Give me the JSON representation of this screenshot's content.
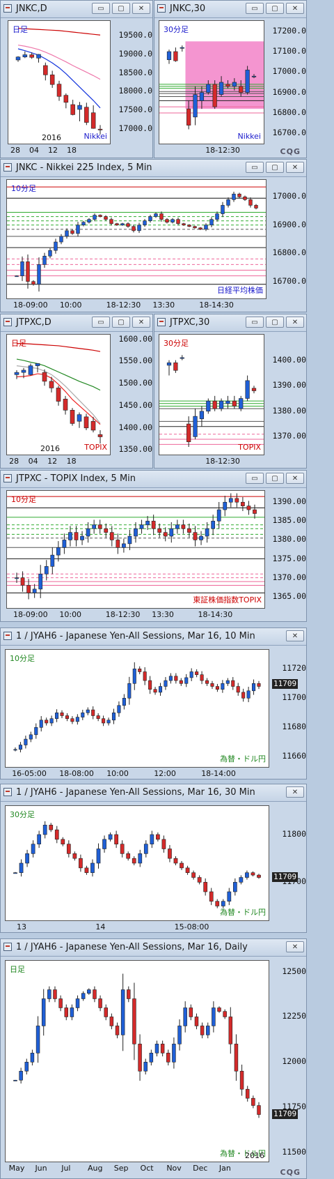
{
  "panels": [
    {
      "id": "p1",
      "title": "JNKC,D",
      "label": "日足",
      "label_color": "#1a1acc",
      "corner_label": "Nikkei",
      "corner_color": "#1a1acc",
      "y_ticks": [
        "19500.0",
        "19000.0",
        "18500.0",
        "18000.0",
        "17500.0",
        "17000.0"
      ],
      "x_ticks": [
        "28",
        "04",
        "12",
        "18"
      ],
      "x_sub": "2016",
      "ylim": [
        16600,
        19900
      ],
      "hlines": [],
      "candles": [
        [
          18850,
          18950,
          18800,
          18930
        ],
        [
          18930,
          19080,
          18900,
          18990
        ],
        [
          18990,
          19050,
          18880,
          18920
        ],
        [
          18900,
          19010,
          18780,
          19000
        ],
        [
          18700,
          18780,
          18300,
          18450
        ],
        [
          18450,
          18560,
          18100,
          18190
        ],
        [
          18200,
          18290,
          17750,
          17870
        ],
        [
          17900,
          17950,
          17550,
          17710
        ],
        [
          17650,
          17780,
          17360,
          17380
        ],
        [
          17520,
          17720,
          17200,
          17630
        ],
        [
          17580,
          17700,
          17100,
          17170
        ],
        [
          17430,
          17630,
          17000,
          17010
        ],
        [
          16990,
          17100,
          16850,
          16980
        ]
      ],
      "mas": [
        {
          "color": "#cc0000",
          "vals": [
            19700,
            19690,
            19680,
            19670,
            19660,
            19650,
            19640,
            19620,
            19600,
            19580,
            19560,
            19540,
            19520
          ]
        },
        {
          "color": "#ee77aa",
          "vals": [
            19250,
            19220,
            19180,
            19130,
            19060,
            18980,
            18890,
            18800,
            18700,
            18610,
            18520,
            18430,
            18330
          ]
        },
        {
          "color": "#1133dd",
          "vals": [
            19150,
            19100,
            19040,
            18980,
            18880,
            18770,
            18640,
            18480,
            18300,
            18120,
            17940,
            17760,
            17560
          ]
        }
      ],
      "cqg": false
    },
    {
      "id": "p2",
      "title": "JNKC,30",
      "label": "30分足",
      "label_color": "#1a1acc",
      "corner_label": "Nikkei",
      "corner_color": "#1a1acc",
      "y_ticks": [
        "17200.0",
        "17100.0",
        "17000.0",
        "16900.0",
        "16800.0",
        "16700.0"
      ],
      "x_ticks": [
        "18-12:30"
      ],
      "x_sub": "",
      "ylim": [
        16650,
        17250
      ],
      "hlines": [
        {
          "y": 16940,
          "color": "#2faa2f"
        },
        {
          "y": 16930,
          "color": "#2faa2f"
        },
        {
          "y": 16920,
          "color": "#2faa2f"
        },
        {
          "y": 16905,
          "color": "#555"
        },
        {
          "y": 16895,
          "color": "#555"
        },
        {
          "y": 16880,
          "color": "#555"
        },
        {
          "y": 16860,
          "color": "#222"
        },
        {
          "y": 16830,
          "color": "#ee6699"
        },
        {
          "y": 16800,
          "color": "#ee6699"
        }
      ],
      "shade": [
        17150,
        16820
      ],
      "candles": [
        [
          17060,
          17110,
          17040,
          17100
        ],
        [
          17100,
          17120,
          17050,
          17055
        ],
        [
          17120,
          17130,
          17100,
          17120
        ],
        [
          16820,
          16860,
          16720,
          16740
        ],
        [
          16780,
          16930,
          16740,
          16890
        ],
        [
          16860,
          16930,
          16820,
          16900
        ],
        [
          16900,
          16960,
          16890,
          16940
        ],
        [
          16940,
          16960,
          16820,
          16830
        ],
        [
          16890,
          16980,
          16880,
          16950
        ],
        [
          16940,
          16960,
          16920,
          16930
        ],
        [
          16930,
          16970,
          16910,
          16950
        ],
        [
          16930,
          16960,
          16880,
          16900
        ],
        [
          16900,
          17030,
          16890,
          17010
        ],
        [
          16980,
          16990,
          16970,
          16980
        ]
      ],
      "mas": [],
      "cqg": true
    },
    {
      "id": "p3",
      "title": "JNKC - Nikkei 225 Index, 5 Min",
      "label": "10分足",
      "label_color": "#1a1acc",
      "corner_label": "日経平均株価",
      "corner_color": "#1a1acc",
      "y_ticks": [
        "17000.0",
        "16900.0",
        "16800.0",
        "16700.0"
      ],
      "x_ticks": [
        "18-09:00",
        "10:00",
        "18-12:30",
        "13:30",
        "18-14:30"
      ],
      "x_sub": "",
      "ylim": [
        16640,
        17060
      ],
      "hlines": [
        {
          "y": 17035,
          "color": "#cc0000"
        },
        {
          "y": 16995,
          "color": "#111"
        },
        {
          "y": 16945,
          "color": "#2faa2f"
        },
        {
          "y": 16930,
          "color": "#2faa2f",
          "dash": true
        },
        {
          "y": 16915,
          "color": "#2faa2f",
          "dash": true
        },
        {
          "y": 16900,
          "color": "#2faa2f",
          "dash": true
        },
        {
          "y": 16885,
          "color": "#555",
          "dash": true
        },
        {
          "y": 16860,
          "color": "#555"
        },
        {
          "y": 16820,
          "color": "#222"
        },
        {
          "y": 16780,
          "color": "#ee6699",
          "dash": true
        },
        {
          "y": 16760,
          "color": "#ee6699",
          "dash": true
        },
        {
          "y": 16740,
          "color": "#ee6699"
        },
        {
          "y": 16720,
          "color": "#ee6699"
        },
        {
          "y": 16690,
          "color": "#111"
        }
      ],
      "candles": "walk:16720,16770,16700,16690,16760,16790,16810,16840,16860,16880,16870,16900,16910,16920,16935,16930,16920,16905,16900,16905,16895,16880,16900,16915,16930,16940,16920,16910,16920,16905,16900,16895,16890,16885,16900,16920,16940,16970,16990,17010,17000,16990,16970,16960",
      "mas": [],
      "cqg": false
    },
    {
      "id": "p4",
      "title": "JTPXC,D",
      "label": "日足",
      "label_color": "#cc0000",
      "corner_label": "TOPIX",
      "corner_color": "#cc0000",
      "y_ticks": [
        "1600.00",
        "1550.00",
        "1500.00",
        "1450.00",
        "1400.00",
        "1350.00"
      ],
      "x_ticks": [
        "28",
        "04",
        "12",
        "18"
      ],
      "x_sub": "2016",
      "ylim": [
        1340,
        1610
      ],
      "hlines": [],
      "candles": [
        [
          1520,
          1530,
          1510,
          1525
        ],
        [
          1525,
          1535,
          1512,
          1530
        ],
        [
          1520,
          1545,
          1518,
          1540
        ],
        [
          1540,
          1545,
          1525,
          1545
        ],
        [
          1525,
          1532,
          1495,
          1505
        ],
        [
          1505,
          1515,
          1480,
          1490
        ],
        [
          1490,
          1495,
          1450,
          1460
        ],
        [
          1465,
          1472,
          1430,
          1440
        ],
        [
          1440,
          1445,
          1405,
          1410
        ],
        [
          1415,
          1435,
          1400,
          1430
        ],
        [
          1425,
          1432,
          1395,
          1400
        ],
        [
          1415,
          1425,
          1390,
          1395
        ],
        [
          1385,
          1395,
          1365,
          1380
        ]
      ],
      "mas": [
        {
          "color": "#cc0000",
          "vals": [
            1590,
            1590,
            1589,
            1588,
            1587,
            1586,
            1585,
            1583,
            1581,
            1579,
            1577,
            1575,
            1572
          ]
        },
        {
          "color": "#228822",
          "vals": [
            1555,
            1552,
            1548,
            1545,
            1540,
            1533,
            1526,
            1519,
            1512,
            1505,
            1499,
            1493,
            1485
          ]
        },
        {
          "color": "#aaaaaa",
          "vals": [
            1540,
            1538,
            1536,
            1534,
            1528,
            1520,
            1508,
            1494,
            1478,
            1462,
            1446,
            1430,
            1410
          ]
        },
        {
          "color": "#ee2222",
          "vals": [
            1515,
            1516,
            1518,
            1522,
            1520,
            1512,
            1498,
            1482,
            1464,
            1450,
            1436,
            1422,
            1408
          ]
        }
      ],
      "cqg": false
    },
    {
      "id": "p5",
      "title": "JTPXC,30",
      "label": "30分足",
      "label_color": "#cc0000",
      "corner_label": "TOPIX",
      "corner_color": "#cc0000",
      "y_ticks": [
        "1400.00",
        "1390.00",
        "1380.00",
        "1370.00"
      ],
      "x_ticks": [
        "18-12:30"
      ],
      "x_sub": "",
      "ylim": [
        1363,
        1410
      ],
      "hlines": [
        {
          "y": 1384,
          "color": "#2faa2f"
        },
        {
          "y": 1383,
          "color": "#2faa2f"
        },
        {
          "y": 1382,
          "color": "#2faa2f"
        },
        {
          "y": 1381,
          "color": "#555"
        },
        {
          "y": 1376,
          "color": "#555"
        },
        {
          "y": 1374,
          "color": "#222"
        },
        {
          "y": 1371,
          "color": "#ee6699",
          "dash": true
        },
        {
          "y": 1369,
          "color": "#ee6699"
        },
        {
          "y": 1367,
          "color": "#ee6699"
        }
      ],
      "candles": [
        [
          1398,
          1400,
          1394,
          1399
        ],
        [
          1399,
          1400,
          1395,
          1396
        ],
        [
          1401,
          1402,
          1400,
          1401
        ],
        [
          1375,
          1378,
          1366,
          1368
        ],
        [
          1370,
          1381,
          1369,
          1378
        ],
        [
          1377,
          1382,
          1374,
          1380
        ],
        [
          1380,
          1385,
          1379,
          1384
        ],
        [
          1384,
          1386,
          1380,
          1381
        ],
        [
          1381,
          1385,
          1380,
          1384
        ],
        [
          1383,
          1386,
          1381,
          1384
        ],
        [
          1384,
          1386,
          1381,
          1382
        ],
        [
          1381,
          1386,
          1380,
          1385
        ],
        [
          1385,
          1394,
          1384,
          1392
        ],
        [
          1389,
          1390,
          1387,
          1388
        ]
      ],
      "mas": [],
      "cqg": false
    },
    {
      "id": "p6",
      "title": "JTPXC - TOPIX Index, 5 Min",
      "label": "10分足",
      "label_color": "#cc0000",
      "corner_label": "東証株価指数TOPIX",
      "corner_color": "#cc0000",
      "y_ticks": [
        "1390.00",
        "1385.00",
        "1380.00",
        "1375.00",
        "1370.00",
        "1365.00"
      ],
      "x_ticks": [
        "18-09:00",
        "10:00",
        "18-12:30",
        "13:30",
        "18-14:30"
      ],
      "x_sub": "",
      "ylim": [
        1362,
        1393
      ],
      "hlines": [
        {
          "y": 1391.5,
          "color": "#cc0000"
        },
        {
          "y": 1388.5,
          "color": "#111"
        },
        {
          "y": 1386,
          "color": "#2faa2f"
        },
        {
          "y": 1384,
          "color": "#2faa2f",
          "dash": true
        },
        {
          "y": 1383,
          "color": "#2faa2f",
          "dash": true
        },
        {
          "y": 1381.5,
          "color": "#2faa2f",
          "dash": true
        },
        {
          "y": 1380.5,
          "color": "#555",
          "dash": true
        },
        {
          "y": 1378,
          "color": "#555"
        },
        {
          "y": 1375,
          "color": "#222"
        },
        {
          "y": 1371,
          "color": "#ee6699",
          "dash": true
        },
        {
          "y": 1370,
          "color": "#ee6699",
          "dash": true
        },
        {
          "y": 1369,
          "color": "#ee6699"
        },
        {
          "y": 1368,
          "color": "#ee6699"
        },
        {
          "y": 1366,
          "color": "#111"
        }
      ],
      "candles": "walk:1370,1368,1366,1367,1371,1373,1376,1378,1380,1382,1380,1381,1383,1384,1383,1382,1380,1378,1379,1381,1383,1384,1385,1383,1382,1381,1383,1384,1383,1382,1380,1381,1383,1385,1388,1390,1391,1390,1389,1388,1387",
      "mas": [],
      "cqg": false
    },
    {
      "id": "p7",
      "title": "1 / JYAH6 - Japanese Yen-All Sessions, Mar 16, 10 Min",
      "label": "10分足",
      "label_color": "#228822",
      "corner_label": "為替・ドル円",
      "corner_color": "#228822",
      "y_ticks": [
        "11720",
        "11700",
        "11680",
        "11660"
      ],
      "x_ticks": [
        "16-05:00",
        "18-08:00",
        "10:00",
        "12:00",
        "18-14:00"
      ],
      "x_sub": "",
      "last_price": "11709",
      "ylim": [
        11653,
        11733
      ],
      "hlines": [],
      "candles": "walk:11665,11668,11672,11675,11680,11685,11683,11686,11690,11688,11686,11684,11687,11690,11692,11688,11686,11683,11685,11690,11695,11700,11710,11720,11718,11712,11706,11704,11708,11712,11715,11712,11710,11714,11718,11716,11712,11710,11708,11706,11710,11712,11708,11704,11700,11705,11710,11708",
      "mas": [],
      "cqg": false
    },
    {
      "id": "p8",
      "title": "1 / JYAH6 - Japanese Yen-All Sessions, Mar 16, 30 Min",
      "label": "30分足",
      "label_color": "#228822",
      "corner_label": "為替・ドル円",
      "corner_color": "#228822",
      "y_ticks": [
        "11800",
        "11700"
      ],
      "x_ticks": [
        "13",
        "14",
        "15-08:00"
      ],
      "x_sub": "",
      "last_price": "11709",
      "ylim": [
        11620,
        11860
      ],
      "hlines": [],
      "candles": "walk:11720,11740,11760,11780,11800,11820,11810,11790,11780,11760,11750,11730,11720,11740,11770,11790,11800,11780,11760,11750,11740,11760,11780,11800,11790,11770,11750,11740,11730,11720,11710,11700,11680,11660,11650,11660,11680,11700,11710,11720,11715,11710",
      "mas": [],
      "cqg": false
    },
    {
      "id": "p9",
      "title": "1 / JYAH6 - Japanese Yen-All Sessions, Mar 16, Daily",
      "label": "日足",
      "label_color": "#228822",
      "corner_label": "為替・ドル円",
      "corner_color": "#228822",
      "y_ticks": [
        "12500",
        "12250",
        "12000",
        "11750",
        "11500"
      ],
      "x_ticks": [
        "May",
        "Jun",
        "Jul",
        "Aug",
        "Sep",
        "Oct",
        "Nov",
        "Dec",
        "Jan"
      ],
      "x_sub": "2016",
      "last_price": "11709",
      "ylim": [
        11450,
        12560
      ],
      "hlines": [],
      "candles": "walk:11900,11950,12000,12050,12200,12350,12400,12350,12300,12250,12300,12350,12380,12400,12350,12300,12250,12200,12150,12400,12350,12100,11950,12000,12050,12100,12050,12000,12100,12200,12300,12250,12200,12150,12200,12300,12280,12250,12100,11950,11850,11800,11760,11710",
      "mas": [],
      "cqg": true
    }
  ],
  "window_buttons": [
    "▭",
    "▢",
    "✕"
  ],
  "cqg_text": "CQG"
}
